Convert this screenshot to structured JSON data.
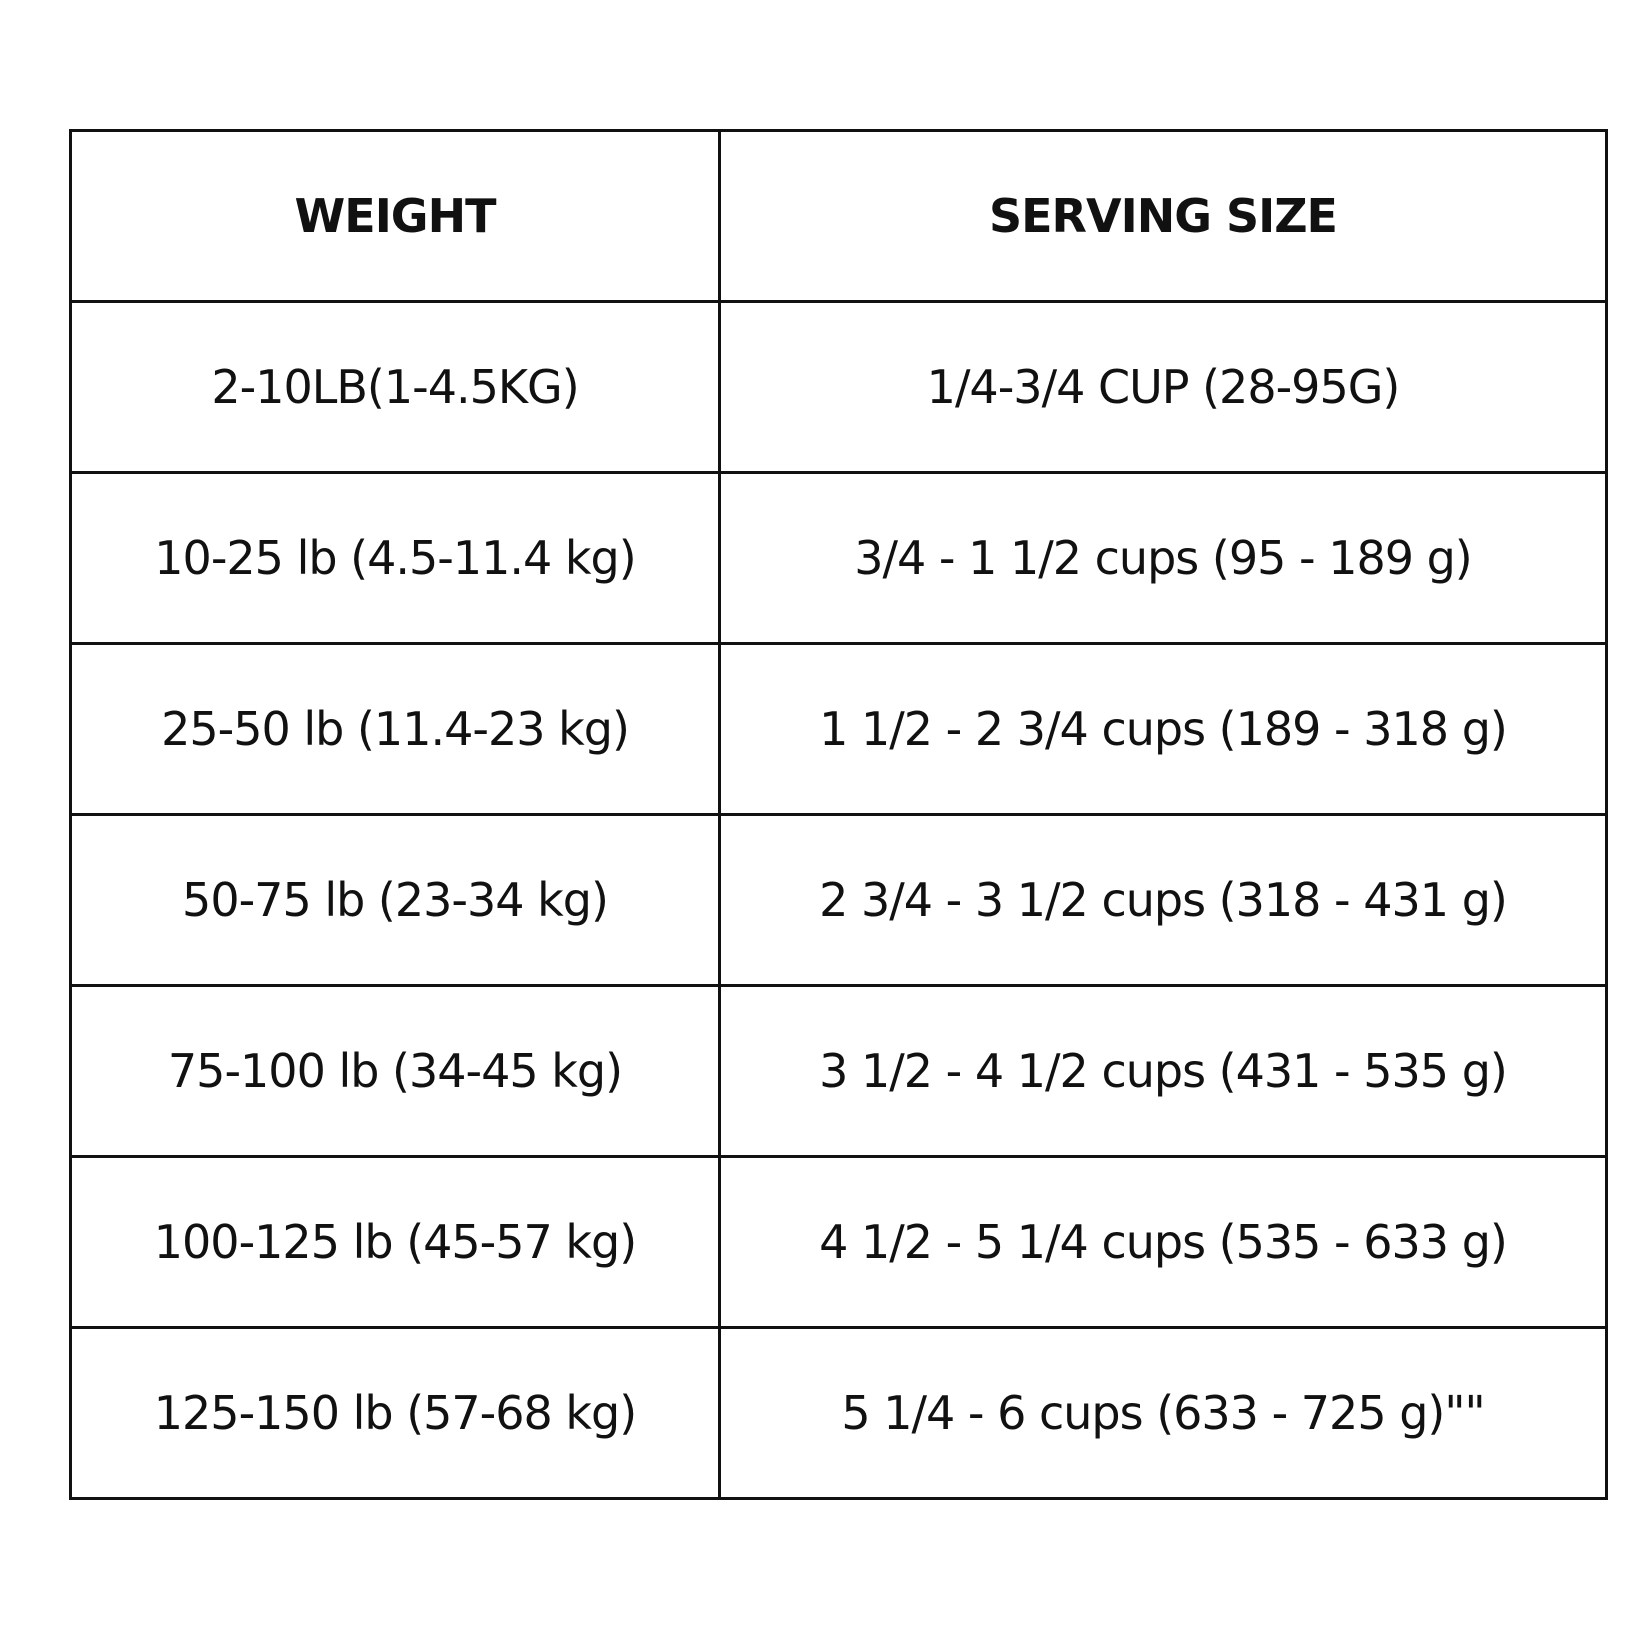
{
  "table": {
    "header": [
      "WEIGHT",
      "SERVING SIZE"
    ],
    "rows": [
      [
        "2-10LB(1-4.5KG)",
        "1/4-3/4 CUP (28-95G)"
      ],
      [
        "10-25 lb (4.5-11.4 kg)",
        "3/4 - 1 1/2 cups (95 - 189 g)"
      ],
      [
        "25-50 lb (11.4-23 kg)",
        "1 1/2 - 2 3/4 cups (189 - 318 g)"
      ],
      [
        "50-75 lb (23-34 kg)",
        "2 3/4 - 3 1/2 cups (318 - 431 g)"
      ],
      [
        "75-100 lb (34-45 kg)",
        "3 1/2 - 4 1/2 cups (431 - 535 g)"
      ],
      [
        "100-125 lb (45-57 kg)",
        "4 1/2 - 5 1/4 cups (535 - 633 g)"
      ],
      [
        "125-150 lb (57-68 kg)",
        "5 1/4 - 6 cups (633 - 725 g)\"\""
      ]
    ]
  }
}
